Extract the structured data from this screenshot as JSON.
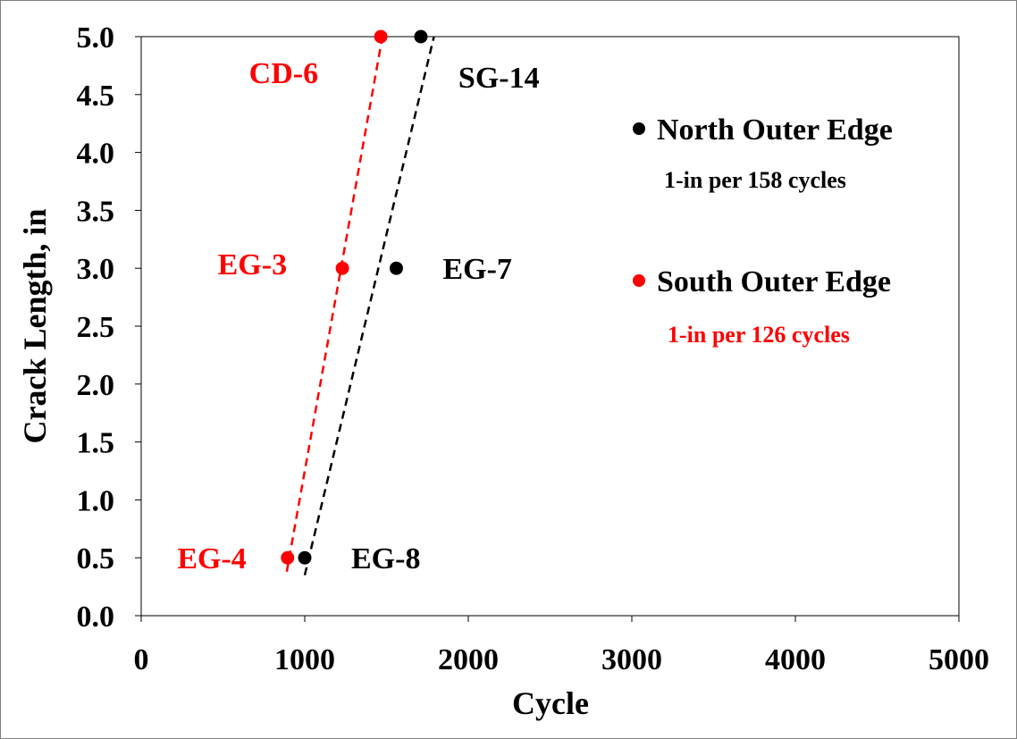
{
  "chart_data": {
    "type": "scatter",
    "title": "",
    "xlabel": "Cycle",
    "ylabel": "Crack Length, in",
    "xlim": [
      0,
      5000
    ],
    "ylim": [
      0,
      5.0
    ],
    "x_ticks": [
      "0",
      "1000",
      "2000",
      "3000",
      "4000",
      "5000"
    ],
    "y_ticks": [
      "0.0",
      "0.5",
      "1.0",
      "1.5",
      "2.0",
      "2.5",
      "3.0",
      "3.5",
      "4.0",
      "4.5",
      "5.0"
    ],
    "grid": false,
    "legend_position": "right",
    "series": [
      {
        "name": "North Outer Edge",
        "rate_label": "1-in per 158 cycles",
        "color": "#000000",
        "points": [
          {
            "label": "EG-8",
            "x": 1000,
            "y": 0.5
          },
          {
            "label": "EG-7",
            "x": 1560,
            "y": 3.0
          },
          {
            "label": "SG-14",
            "x": 1710,
            "y": 5.0
          }
        ],
        "trend": {
          "style": "dashed",
          "x": [
            1000,
            1790
          ],
          "y": [
            0.35,
            5.0
          ]
        }
      },
      {
        "name": "South Outer Edge",
        "rate_label": "1-in per 126 cycles",
        "color": "#ff0000",
        "points": [
          {
            "label": "EG-4",
            "x": 895,
            "y": 0.5
          },
          {
            "label": "EG-3",
            "x": 1230,
            "y": 3.0
          },
          {
            "label": "CD-6",
            "x": 1465,
            "y": 5.0
          }
        ],
        "trend": {
          "style": "dashed",
          "x": [
            890,
            1475
          ],
          "y": [
            0.38,
            5.0
          ]
        }
      }
    ]
  }
}
